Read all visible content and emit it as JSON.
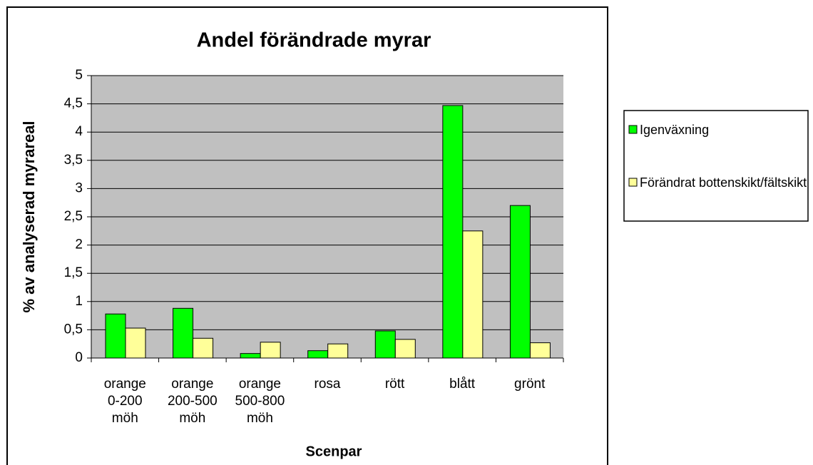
{
  "chart_data": {
    "type": "bar",
    "title": "Andel förändrade myrar",
    "x_label": "Scenpar",
    "y_label": "% av analyserad myrareal",
    "categories": [
      "orange 0-200 möh",
      "orange 200-500 möh",
      "orange 500-800 möh",
      "rosa",
      "rött",
      "blått",
      "grönt"
    ],
    "series": [
      {
        "name": "Igenväxning",
        "color": "#00ff00",
        "values": [
          0.78,
          0.88,
          0.08,
          0.13,
          0.48,
          4.47,
          2.7
        ]
      },
      {
        "name": "Förändrat bottenskikt/fältskikt",
        "color": "#ffff99",
        "values": [
          0.53,
          0.35,
          0.28,
          0.25,
          0.33,
          2.25,
          0.27
        ]
      }
    ],
    "ylim": [
      0,
      5
    ],
    "yticks": [
      0,
      {
        "value": 0.5,
        "label": "0,5"
      },
      1,
      {
        "value": 1.5,
        "label": "1,5"
      },
      2,
      {
        "value": 2.5,
        "label": "2,5"
      },
      3,
      {
        "value": 3.5,
        "label": "3,5"
      },
      4,
      {
        "value": 4.5,
        "label": "4,5"
      },
      5
    ],
    "grid": true,
    "plot_background": "#c0c0c0",
    "legend": "right"
  }
}
